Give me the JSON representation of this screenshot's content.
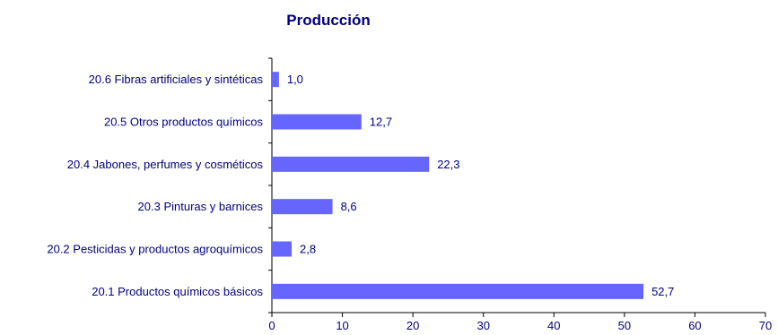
{
  "chart_data": {
    "type": "bar",
    "orientation": "horizontal",
    "title": "Producción",
    "xlabel": "",
    "ylabel": "",
    "categories": [
      "20.1 Productos químicos básicos",
      "20.2 Pesticidas y productos agroquímicos",
      "20.3 Pinturas y barnices",
      "20.4 Jabones, perfumes y cosméticos",
      "20.5 Otros productos químicos",
      "20.6 Fibras artificiales y sintéticas"
    ],
    "values": [
      52.7,
      2.8,
      8.6,
      22.3,
      12.7,
      1.0
    ],
    "value_labels": [
      "52,7",
      "2,8",
      "8,6",
      "22,3",
      "12,7",
      "1,0"
    ],
    "xlim": [
      0,
      70
    ],
    "xticks": [
      0,
      10,
      20,
      30,
      40,
      50,
      60,
      70
    ],
    "xtick_labels": [
      "0",
      "10",
      "20",
      "30",
      "40",
      "50",
      "60",
      "70"
    ],
    "grid": false,
    "legend": "none",
    "colors": {
      "bar": "#6666ff",
      "text": "#000080",
      "axis": "#000000"
    }
  }
}
